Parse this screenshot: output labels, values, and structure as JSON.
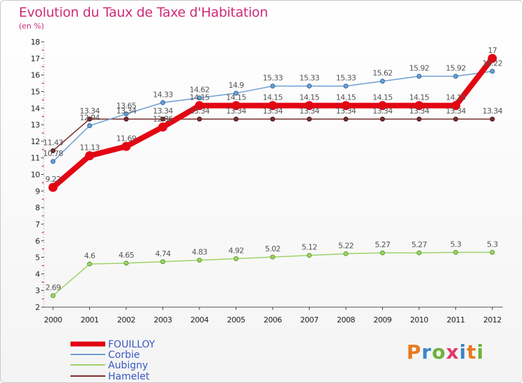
{
  "title": "Evolution du Taux de Taxe d'Habitation",
  "subtitle": "(en %)",
  "brand": {
    "text": "Proxiti",
    "colors": [
      "#e87a1d",
      "#3e86c9",
      "#6bb33a",
      "#e2386a",
      "#3e86c9",
      "#e87a1d",
      "#6bb33a"
    ]
  },
  "chart_data": {
    "type": "line",
    "title": "Evolution du Taux de Taxe d'Habitation",
    "ylabel": "(en %)",
    "xlabel": "",
    "ylim": [
      2,
      18
    ],
    "yticks": [
      "2",
      "3",
      "4",
      "5",
      "6",
      "7",
      "8",
      "9",
      "10",
      "11",
      "12",
      "13",
      "14",
      "15",
      "16",
      "17",
      "18"
    ],
    "x": [
      "2000",
      "2001",
      "2002",
      "2003",
      "2004",
      "2005",
      "2006",
      "2007",
      "2008",
      "2009",
      "2010",
      "2011",
      "2012"
    ],
    "grid": false,
    "legend": "bottom-left",
    "series": [
      {
        "name": "FOUILLOY",
        "color": "#e30613",
        "values": [
          9.22,
          11.13,
          11.69,
          12.86,
          14.15,
          14.15,
          14.15,
          14.15,
          14.15,
          14.15,
          14.15,
          14.15,
          17
        ],
        "labels": [
          "9.22",
          "11.13",
          "11.69",
          "12.86",
          "14.15",
          "14.15",
          "14.15",
          "14.15",
          "14.15",
          "14.15",
          "14.15",
          "14.15",
          "17"
        ]
      },
      {
        "name": "Corbie",
        "color": "#6e9fd1",
        "values": [
          10.78,
          12.94,
          13.65,
          14.33,
          14.62,
          14.9,
          15.33,
          15.33,
          15.33,
          15.62,
          15.92,
          15.92,
          16.22
        ],
        "labels": [
          "10.78",
          "12.94",
          "13.65",
          "14.33",
          "14.62",
          "14.9",
          "15.33",
          "15.33",
          "15.33",
          "15.62",
          "15.92",
          "15.92",
          "16.22"
        ]
      },
      {
        "name": "Aubigny",
        "color": "#9fd36a",
        "values": [
          2.69,
          4.6,
          4.65,
          4.74,
          4.83,
          4.92,
          5.02,
          5.12,
          5.22,
          5.27,
          5.27,
          5.3,
          5.3
        ],
        "labels": [
          "2.69",
          "4.6",
          "4.65",
          "4.74",
          "4.83",
          "4.92",
          "5.02",
          "5.12",
          "5.22",
          "5.27",
          "5.27",
          "5.3",
          "5.3"
        ]
      },
      {
        "name": "Hamelet",
        "color": "#7a2e2e",
        "values": [
          11.43,
          13.34,
          13.34,
          13.34,
          13.34,
          13.34,
          13.34,
          13.34,
          13.34,
          13.34,
          13.34,
          13.34,
          13.34
        ],
        "labels": [
          "11.43",
          "13.34",
          "13.34",
          "13.34",
          "13.34",
          "13.34",
          "13.34",
          "13.34",
          "13.34",
          "13.34",
          "13.34",
          "13.34",
          "13.34"
        ]
      }
    ]
  }
}
